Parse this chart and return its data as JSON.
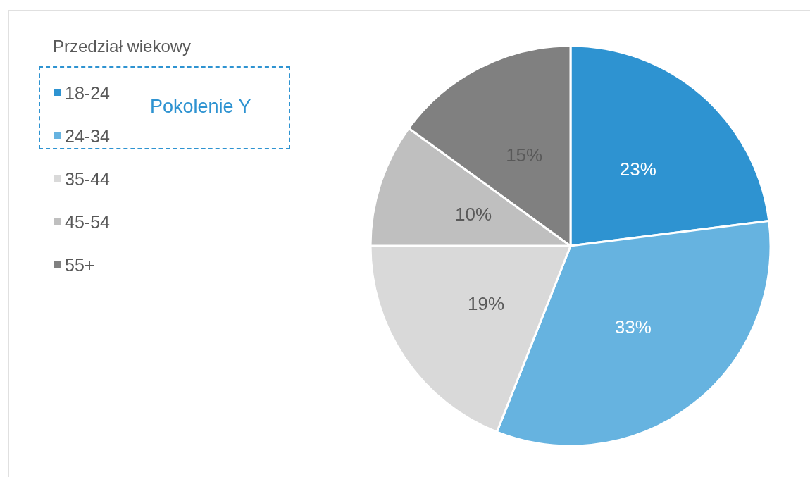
{
  "chart_data": {
    "type": "pie",
    "legend_title": "Przedział wiekowy",
    "categories": [
      "18-24",
      "24-34",
      "35-44",
      "45-54",
      "55+"
    ],
    "values": [
      23,
      33,
      19,
      10,
      15
    ],
    "value_labels": [
      "23%",
      "33%",
      "19%",
      "10%",
      "15%"
    ],
    "colors": [
      "#2e93d1",
      "#66b3e0",
      "#d9d9d9",
      "#bfbfbf",
      "#808080"
    ],
    "legend": "top left",
    "annotations": [
      "Pokolenie Y"
    ]
  }
}
